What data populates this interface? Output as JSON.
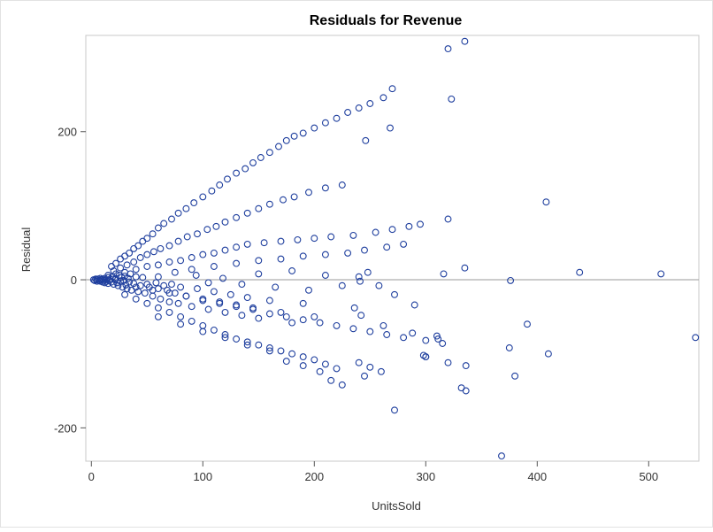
{
  "chart_data": {
    "type": "scatter",
    "title": "Residuals for Revenue",
    "xlabel": "UnitsSold",
    "ylabel": "Residual",
    "xlim": [
      -5,
      545
    ],
    "ylim": [
      -245,
      330
    ],
    "x_ticks": [
      0,
      100,
      200,
      300,
      400,
      500
    ],
    "y_ticks": [
      -200,
      0,
      200
    ],
    "reference_line_y": 0,
    "grid": false,
    "marker": "open-circle",
    "colors": {
      "marker": "#1f3f9e",
      "axis": "#555555",
      "frame": "#c8c8c8",
      "refline": "#9a9a9a"
    },
    "points": [
      [
        2,
        0
      ],
      [
        3,
        -1
      ],
      [
        4,
        1
      ],
      [
        5,
        0
      ],
      [
        5,
        -2
      ],
      [
        6,
        1
      ],
      [
        7,
        -1
      ],
      [
        8,
        2
      ],
      [
        8,
        -2
      ],
      [
        9,
        0
      ],
      [
        10,
        1
      ],
      [
        10,
        -3
      ],
      [
        11,
        -1
      ],
      [
        12,
        2
      ],
      [
        12,
        -4
      ],
      [
        13,
        0
      ],
      [
        14,
        -2
      ],
      [
        15,
        3
      ],
      [
        15,
        -5
      ],
      [
        16,
        -1
      ],
      [
        17,
        1
      ],
      [
        18,
        -3
      ],
      [
        19,
        4
      ],
      [
        20,
        -6
      ],
      [
        21,
        0
      ],
      [
        22,
        2
      ],
      [
        23,
        -4
      ],
      [
        24,
        -8
      ],
      [
        25,
        6
      ],
      [
        26,
        -2
      ],
      [
        27,
        3
      ],
      [
        28,
        -10
      ],
      [
        29,
        -1
      ],
      [
        30,
        5
      ],
      [
        31,
        -7
      ],
      [
        32,
        -12
      ],
      [
        33,
        2
      ],
      [
        34,
        -3
      ],
      [
        35,
        8
      ],
      [
        36,
        -14
      ],
      [
        38,
        -5
      ],
      [
        40,
        4
      ],
      [
        42,
        -16
      ],
      [
        44,
        -8
      ],
      [
        46,
        3
      ],
      [
        48,
        -18
      ],
      [
        50,
        -6
      ],
      [
        52,
        -10
      ],
      [
        55,
        -22
      ],
      [
        58,
        -4
      ],
      [
        60,
        -12
      ],
      [
        62,
        -26
      ],
      [
        65,
        -8
      ],
      [
        68,
        -14
      ],
      [
        70,
        -30
      ],
      [
        72,
        -6
      ],
      [
        75,
        -18
      ],
      [
        78,
        -32
      ],
      [
        80,
        -10
      ],
      [
        85,
        -22
      ],
      [
        90,
        -36
      ],
      [
        95,
        -12
      ],
      [
        100,
        -26
      ],
      [
        105,
        -40
      ],
      [
        110,
        -16
      ],
      [
        115,
        -30
      ],
      [
        120,
        -44
      ],
      [
        125,
        -20
      ],
      [
        130,
        -34
      ],
      [
        135,
        -48
      ],
      [
        140,
        -24
      ],
      [
        145,
        -38
      ],
      [
        150,
        -52
      ],
      [
        160,
        -28
      ],
      [
        170,
        -44
      ],
      [
        180,
        -58
      ],
      [
        190,
        -32
      ],
      [
        200,
        -50
      ],
      [
        18,
        18
      ],
      [
        22,
        22
      ],
      [
        26,
        28
      ],
      [
        30,
        32
      ],
      [
        34,
        36
      ],
      [
        38,
        42
      ],
      [
        42,
        46
      ],
      [
        46,
        52
      ],
      [
        50,
        56
      ],
      [
        55,
        62
      ],
      [
        60,
        70
      ],
      [
        65,
        76
      ],
      [
        72,
        82
      ],
      [
        78,
        90
      ],
      [
        85,
        96
      ],
      [
        92,
        104
      ],
      [
        100,
        112
      ],
      [
        108,
        120
      ],
      [
        115,
        128
      ],
      [
        122,
        136
      ],
      [
        130,
        144
      ],
      [
        138,
        150
      ],
      [
        145,
        158
      ],
      [
        152,
        165
      ],
      [
        160,
        172
      ],
      [
        168,
        180
      ],
      [
        175,
        188
      ],
      [
        182,
        194
      ],
      [
        190,
        198
      ],
      [
        200,
        205
      ],
      [
        210,
        212
      ],
      [
        220,
        218
      ],
      [
        230,
        226
      ],
      [
        240,
        232
      ],
      [
        250,
        238
      ],
      [
        262,
        246
      ],
      [
        270,
        258
      ],
      [
        20,
        12
      ],
      [
        26,
        16
      ],
      [
        32,
        20
      ],
      [
        38,
        24
      ],
      [
        44,
        30
      ],
      [
        50,
        34
      ],
      [
        56,
        38
      ],
      [
        62,
        42
      ],
      [
        70,
        46
      ],
      [
        78,
        52
      ],
      [
        86,
        58
      ],
      [
        95,
        62
      ],
      [
        104,
        68
      ],
      [
        112,
        72
      ],
      [
        120,
        78
      ],
      [
        130,
        84
      ],
      [
        140,
        90
      ],
      [
        150,
        96
      ],
      [
        160,
        102
      ],
      [
        172,
        108
      ],
      [
        182,
        112
      ],
      [
        195,
        118
      ],
      [
        210,
        124
      ],
      [
        225,
        128
      ],
      [
        15,
        6
      ],
      [
        22,
        8
      ],
      [
        30,
        10
      ],
      [
        40,
        14
      ],
      [
        50,
        18
      ],
      [
        60,
        20
      ],
      [
        70,
        24
      ],
      [
        80,
        26
      ],
      [
        90,
        30
      ],
      [
        100,
        34
      ],
      [
        110,
        36
      ],
      [
        120,
        40
      ],
      [
        130,
        44
      ],
      [
        140,
        48
      ],
      [
        155,
        50
      ],
      [
        170,
        52
      ],
      [
        185,
        54
      ],
      [
        200,
        56
      ],
      [
        215,
        58
      ],
      [
        235,
        60
      ],
      [
        255,
        64
      ],
      [
        270,
        68
      ],
      [
        285,
        72
      ],
      [
        295,
        75
      ],
      [
        30,
        -20
      ],
      [
        40,
        -26
      ],
      [
        50,
        -32
      ],
      [
        60,
        -38
      ],
      [
        70,
        -44
      ],
      [
        80,
        -50
      ],
      [
        90,
        -56
      ],
      [
        100,
        -62
      ],
      [
        110,
        -68
      ],
      [
        120,
        -74
      ],
      [
        130,
        -80
      ],
      [
        140,
        -84
      ],
      [
        150,
        -88
      ],
      [
        160,
        -92
      ],
      [
        170,
        -96
      ],
      [
        180,
        -100
      ],
      [
        190,
        -104
      ],
      [
        200,
        -108
      ],
      [
        210,
        -114
      ],
      [
        220,
        -120
      ],
      [
        240,
        -112
      ],
      [
        250,
        -118
      ],
      [
        40,
        -10
      ],
      [
        55,
        -14
      ],
      [
        70,
        -18
      ],
      [
        85,
        -22
      ],
      [
        100,
        -28
      ],
      [
        115,
        -32
      ],
      [
        130,
        -36
      ],
      [
        145,
        -40
      ],
      [
        160,
        -46
      ],
      [
        175,
        -50
      ],
      [
        190,
        -54
      ],
      [
        205,
        -58
      ],
      [
        220,
        -62
      ],
      [
        235,
        -66
      ],
      [
        250,
        -70
      ],
      [
        265,
        -74
      ],
      [
        280,
        -78
      ],
      [
        300,
        -82
      ],
      [
        315,
        -86
      ],
      [
        60,
        4
      ],
      [
        75,
        10
      ],
      [
        90,
        14
      ],
      [
        110,
        18
      ],
      [
        130,
        22
      ],
      [
        150,
        26
      ],
      [
        170,
        28
      ],
      [
        190,
        32
      ],
      [
        210,
        34
      ],
      [
        230,
        36
      ],
      [
        245,
        40
      ],
      [
        265,
        44
      ],
      [
        280,
        48
      ],
      [
        60,
        -50
      ],
      [
        80,
        -60
      ],
      [
        100,
        -70
      ],
      [
        120,
        -78
      ],
      [
        140,
        -88
      ],
      [
        160,
        -96
      ],
      [
        175,
        -110
      ],
      [
        190,
        -116
      ],
      [
        205,
        -124
      ],
      [
        215,
        -136
      ],
      [
        225,
        -142
      ],
      [
        245,
        -130
      ],
      [
        260,
        -124
      ],
      [
        94,
        6
      ],
      [
        105,
        -4
      ],
      [
        118,
        2
      ],
      [
        135,
        -6
      ],
      [
        150,
        8
      ],
      [
        165,
        -10
      ],
      [
        180,
        12
      ],
      [
        195,
        -14
      ],
      [
        210,
        6
      ],
      [
        225,
        -8
      ],
      [
        240,
        4
      ],
      [
        248,
        10
      ],
      [
        241,
        -2
      ],
      [
        258,
        -8
      ],
      [
        272,
        -20
      ],
      [
        290,
        -34
      ],
      [
        320,
        312
      ],
      [
        323,
        244
      ],
      [
        335,
        322
      ],
      [
        268,
        205
      ],
      [
        246,
        188
      ],
      [
        320,
        82
      ],
      [
        408,
        105
      ],
      [
        335,
        16
      ],
      [
        438,
        10
      ],
      [
        511,
        8
      ],
      [
        376,
        -1
      ],
      [
        316,
        8
      ],
      [
        542,
        -78
      ],
      [
        391,
        -60
      ],
      [
        375,
        -92
      ],
      [
        410,
        -100
      ],
      [
        380,
        -130
      ],
      [
        332,
        -146
      ],
      [
        336,
        -150
      ],
      [
        272,
        -176
      ],
      [
        368,
        -238
      ],
      [
        300,
        -104
      ],
      [
        298,
        -102
      ],
      [
        320,
        -112
      ],
      [
        336,
        -116
      ],
      [
        310,
        -76
      ],
      [
        311,
        -80
      ],
      [
        288,
        -72
      ],
      [
        262,
        -62
      ],
      [
        242,
        -48
      ],
      [
        236,
        -38
      ],
      [
        300,
        -104
      ]
    ]
  }
}
